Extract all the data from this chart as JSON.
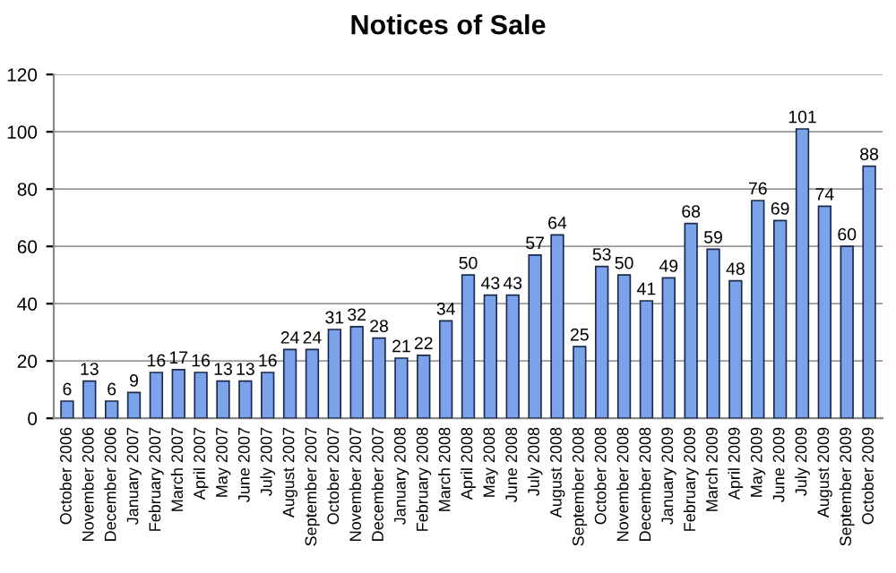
{
  "chart_data": {
    "type": "bar",
    "title": "Notices of Sale",
    "categories": [
      "October 2006",
      "November 2006",
      "December 2006",
      "January 2007",
      "February 2007",
      "March 2007",
      "April 2007",
      "May 2007",
      "June 2007",
      "July 2007",
      "August 2007",
      "September 2007",
      "October 2007",
      "November 2007",
      "December 2007",
      "January 2008",
      "February 2008",
      "March 2008",
      "April 2008",
      "May 2008",
      "June 2008",
      "July 2008",
      "August 2008",
      "September 2008",
      "October 2008",
      "November 2008",
      "December 2008",
      "January 2009",
      "February 2009",
      "March 2009",
      "April 2009",
      "May 2009",
      "June 2009",
      "July 2009",
      "August 2009",
      "September 2009",
      "October 2009"
    ],
    "values": [
      6,
      13,
      6,
      9,
      16,
      17,
      16,
      13,
      13,
      16,
      24,
      24,
      31,
      32,
      28,
      21,
      22,
      34,
      50,
      43,
      43,
      57,
      64,
      25,
      53,
      50,
      41,
      49,
      68,
      59,
      48,
      76,
      69,
      101,
      74,
      60,
      88
    ],
    "color": "#7ba3ec",
    "ylim": [
      0,
      120
    ],
    "yticks": [
      0,
      20,
      40,
      60,
      80,
      100,
      120
    ],
    "grid": "y",
    "data_labels": true
  }
}
